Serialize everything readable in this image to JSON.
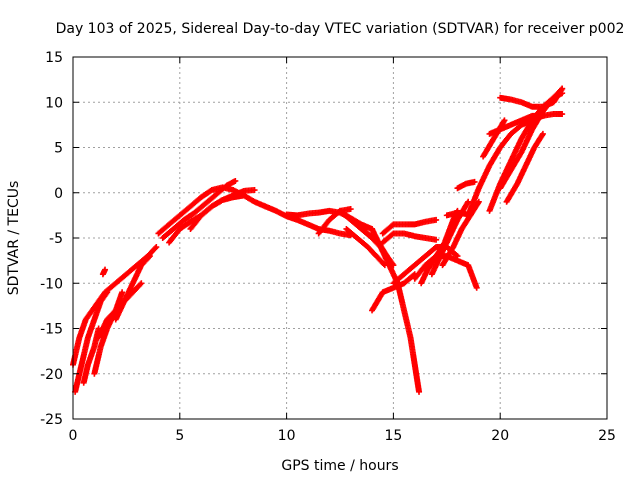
{
  "chart_data": {
    "type": "scatter",
    "title": "Day 103 of 2025, Sidereal Day-to-day VTEC variation (SDTVAR) for receiver p002",
    "xlabel": "GPS time / hours",
    "ylabel": "SDTVAR / TECUs",
    "xlim": [
      0,
      25
    ],
    "ylim": [
      -25,
      15
    ],
    "x_ticks": [
      0,
      5,
      10,
      15,
      20,
      25
    ],
    "y_ticks": [
      -25,
      -20,
      -15,
      -10,
      -5,
      0,
      5,
      10,
      15
    ],
    "grid": true,
    "marker": "+",
    "colors": {
      "series": "#ff0000",
      "axis": "#000000",
      "grid": "#a0a0a0"
    },
    "series": [
      {
        "x": [
          0.0,
          0.3,
          0.6,
          0.9,
          1.2,
          1.5,
          2.0,
          2.5,
          3.0,
          3.5,
          3.9
        ],
        "y": [
          -19,
          -16,
          -14,
          -13,
          -12,
          -11,
          -10,
          -9,
          -8,
          -7,
          -6
        ]
      },
      {
        "x": [
          0.1,
          0.4,
          0.7,
          1.0,
          1.3,
          1.6
        ],
        "y": [
          -22,
          -19,
          -16,
          -14,
          -12,
          -11
        ]
      },
      {
        "x": [
          0.5,
          0.7,
          1.0,
          1.2
        ],
        "y": [
          -21,
          -19,
          -17,
          -15
        ]
      },
      {
        "x": [
          1.0,
          1.3,
          1.6,
          2.0,
          2.3
        ],
        "y": [
          -20,
          -17,
          -15,
          -13,
          -11
        ]
      },
      {
        "x": [
          1.2,
          1.6,
          2.0,
          2.4,
          2.8,
          3.2
        ],
        "y": [
          -16,
          -14,
          -13,
          -12,
          -11,
          -10
        ]
      },
      {
        "x": [
          2.0,
          2.4,
          2.8,
          3.2,
          3.6
        ],
        "y": [
          -14,
          -12,
          -10,
          -8,
          -7
        ]
      },
      {
        "x": [
          1.4,
          1.5
        ],
        "y": [
          -9,
          -8.5
        ]
      },
      {
        "x": [
          4.0,
          4.5,
          5.0,
          5.5,
          6.0,
          6.5,
          7.0,
          7.5,
          8.0,
          8.5,
          9.0
        ],
        "y": [
          -4.5,
          -3.5,
          -2.5,
          -1.5,
          -0.5,
          0.3,
          0.6,
          0.3,
          -0.3,
          -1.0,
          -1.5
        ]
      },
      {
        "x": [
          4.2,
          4.7,
          5.2,
          5.7,
          6.2,
          6.7,
          7.2,
          7.6
        ],
        "y": [
          -5,
          -4,
          -3,
          -2.2,
          -1.2,
          -0.2,
          0.8,
          1.3
        ]
      },
      {
        "x": [
          4.5,
          5.0,
          5.5,
          6.0,
          6.5,
          7.0,
          7.5,
          8.0
        ],
        "y": [
          -5.5,
          -4,
          -3.2,
          -2.5,
          -1.5,
          -0.8,
          -0.5,
          -0.3
        ]
      },
      {
        "x": [
          5.5,
          6.0,
          6.5,
          7.0,
          7.5,
          8.0,
          8.5
        ],
        "y": [
          -4,
          -2.5,
          -1.5,
          -0.8,
          -0.3,
          0.2,
          0.3
        ]
      },
      {
        "x": [
          9.0,
          9.5,
          10.0,
          10.5,
          11.0,
          11.5,
          12.0,
          12.5,
          13.0
        ],
        "y": [
          -1.5,
          -2,
          -2.6,
          -3,
          -3.5,
          -4,
          -4.2,
          -4.5,
          -4.7
        ]
      },
      {
        "x": [
          10.0,
          10.5,
          11.0,
          11.5,
          12.0,
          12.5,
          13.0,
          13.5,
          14.0
        ],
        "y": [
          -2.4,
          -2.5,
          -2.3,
          -2.2,
          -2.0,
          -2.2,
          -2.8,
          -3.5,
          -4
        ]
      },
      {
        "x": [
          11.5,
          12.0,
          12.5,
          13.0
        ],
        "y": [
          -4.5,
          -3,
          -2,
          -1.8
        ]
      },
      {
        "x": [
          12.5,
          13.0,
          13.5,
          14.0,
          14.4
        ],
        "y": [
          -2,
          -3,
          -4,
          -5,
          -6
        ]
      },
      {
        "x": [
          12.8,
          13.3,
          13.8,
          14.2,
          14.6
        ],
        "y": [
          -4,
          -5,
          -6,
          -7,
          -8
        ]
      },
      {
        "x": [
          12.8,
          13.3,
          13.8,
          14.3,
          14.7,
          15.0
        ],
        "y": [
          -2.5,
          -3.5,
          -4.5,
          -5.5,
          -7,
          -8
        ]
      },
      {
        "x": [
          14.0,
          14.4,
          14.8,
          15.2,
          15.5,
          15.8,
          16.0,
          16.2
        ],
        "y": [
          -4.0,
          -6,
          -8,
          -10,
          -13,
          -16,
          -19,
          -22
        ]
      },
      {
        "x": [
          14.0,
          14.5,
          15.0,
          15.5,
          16.0
        ],
        "y": [
          -13,
          -11,
          -10.5,
          -10,
          -9
        ]
      },
      {
        "x": [
          14.5,
          15.0,
          15.5,
          16.0,
          16.5,
          17.0
        ],
        "y": [
          -4.5,
          -3.5,
          -3.5,
          -3.5,
          -3.2,
          -3.0
        ]
      },
      {
        "x": [
          14.5,
          15.0,
          15.5,
          16.0,
          16.5,
          17.0
        ],
        "y": [
          -5.5,
          -4.5,
          -4.5,
          -4.8,
          -5.0,
          -5.2
        ]
      },
      {
        "x": [
          15.0,
          15.5,
          16.0,
          16.5,
          17.0,
          17.5,
          18.0
        ],
        "y": [
          -10,
          -9,
          -8,
          -7,
          -6,
          -6,
          -7
        ]
      },
      {
        "x": [
          16.0,
          16.5,
          17.0,
          17.5,
          18.0,
          18.5,
          18.9
        ],
        "y": [
          -9.5,
          -8,
          -7,
          -7,
          -7.5,
          -8,
          -10.5
        ]
      },
      {
        "x": [
          16.3,
          16.6,
          17.0,
          17.4,
          17.8,
          18.0
        ],
        "y": [
          -10,
          -8.5,
          -7,
          -5.5,
          -3,
          -2
        ]
      },
      {
        "x": [
          16.8,
          17.2,
          17.6,
          18.0,
          18.5
        ],
        "y": [
          -9,
          -7,
          -5,
          -3,
          -1
        ]
      },
      {
        "x": [
          17.3,
          17.8,
          18.2,
          18.6,
          19.0
        ],
        "y": [
          -8,
          -6,
          -4,
          -2.5,
          -1
        ]
      },
      {
        "x": [
          17.5,
          18.0,
          18.3,
          18.6
        ],
        "y": [
          -2.5,
          -2.2,
          -2.3,
          -2.5
        ]
      },
      {
        "x": [
          18.5,
          19.0,
          19.5,
          20.0,
          20.5,
          21.0,
          21.5,
          22.0
        ],
        "y": [
          -2.5,
          0.5,
          3,
          5,
          6.5,
          7.5,
          8,
          8.5
        ]
      },
      {
        "x": [
          19.5,
          20.0,
          20.5,
          21.0,
          21.5,
          22.0,
          22.5,
          22.9
        ],
        "y": [
          -2,
          1,
          3.5,
          6,
          8,
          9.5,
          10.5,
          11
        ]
      },
      {
        "x": [
          20.0,
          20.5,
          21.0,
          21.5,
          22.0,
          22.5,
          22.9
        ],
        "y": [
          0.5,
          2.5,
          4.5,
          7,
          9,
          10.5,
          11.5
        ]
      },
      {
        "x": [
          20.3,
          20.8,
          21.2,
          21.6,
          22.0
        ],
        "y": [
          -1,
          1,
          3,
          5,
          6.5
        ]
      },
      {
        "x": [
          19.5,
          20.0,
          20.5,
          21.0,
          21.5,
          22.0,
          22.5,
          22.9
        ],
        "y": [
          6.5,
          7,
          7.5,
          8,
          8.5,
          8.5,
          8.7,
          8.7
        ]
      },
      {
        "x": [
          20.0,
          20.5,
          21.0,
          21.5,
          22.0,
          22.5,
          22.9
        ],
        "y": [
          10.5,
          10.3,
          10,
          9.5,
          9.5,
          10,
          11.5
        ]
      },
      {
        "x": [
          19.2,
          19.7,
          20.2
        ],
        "y": [
          4,
          6,
          8
        ]
      },
      {
        "x": [
          18.0,
          18.4,
          18.8
        ],
        "y": [
          0.5,
          1,
          1.2
        ]
      }
    ]
  }
}
